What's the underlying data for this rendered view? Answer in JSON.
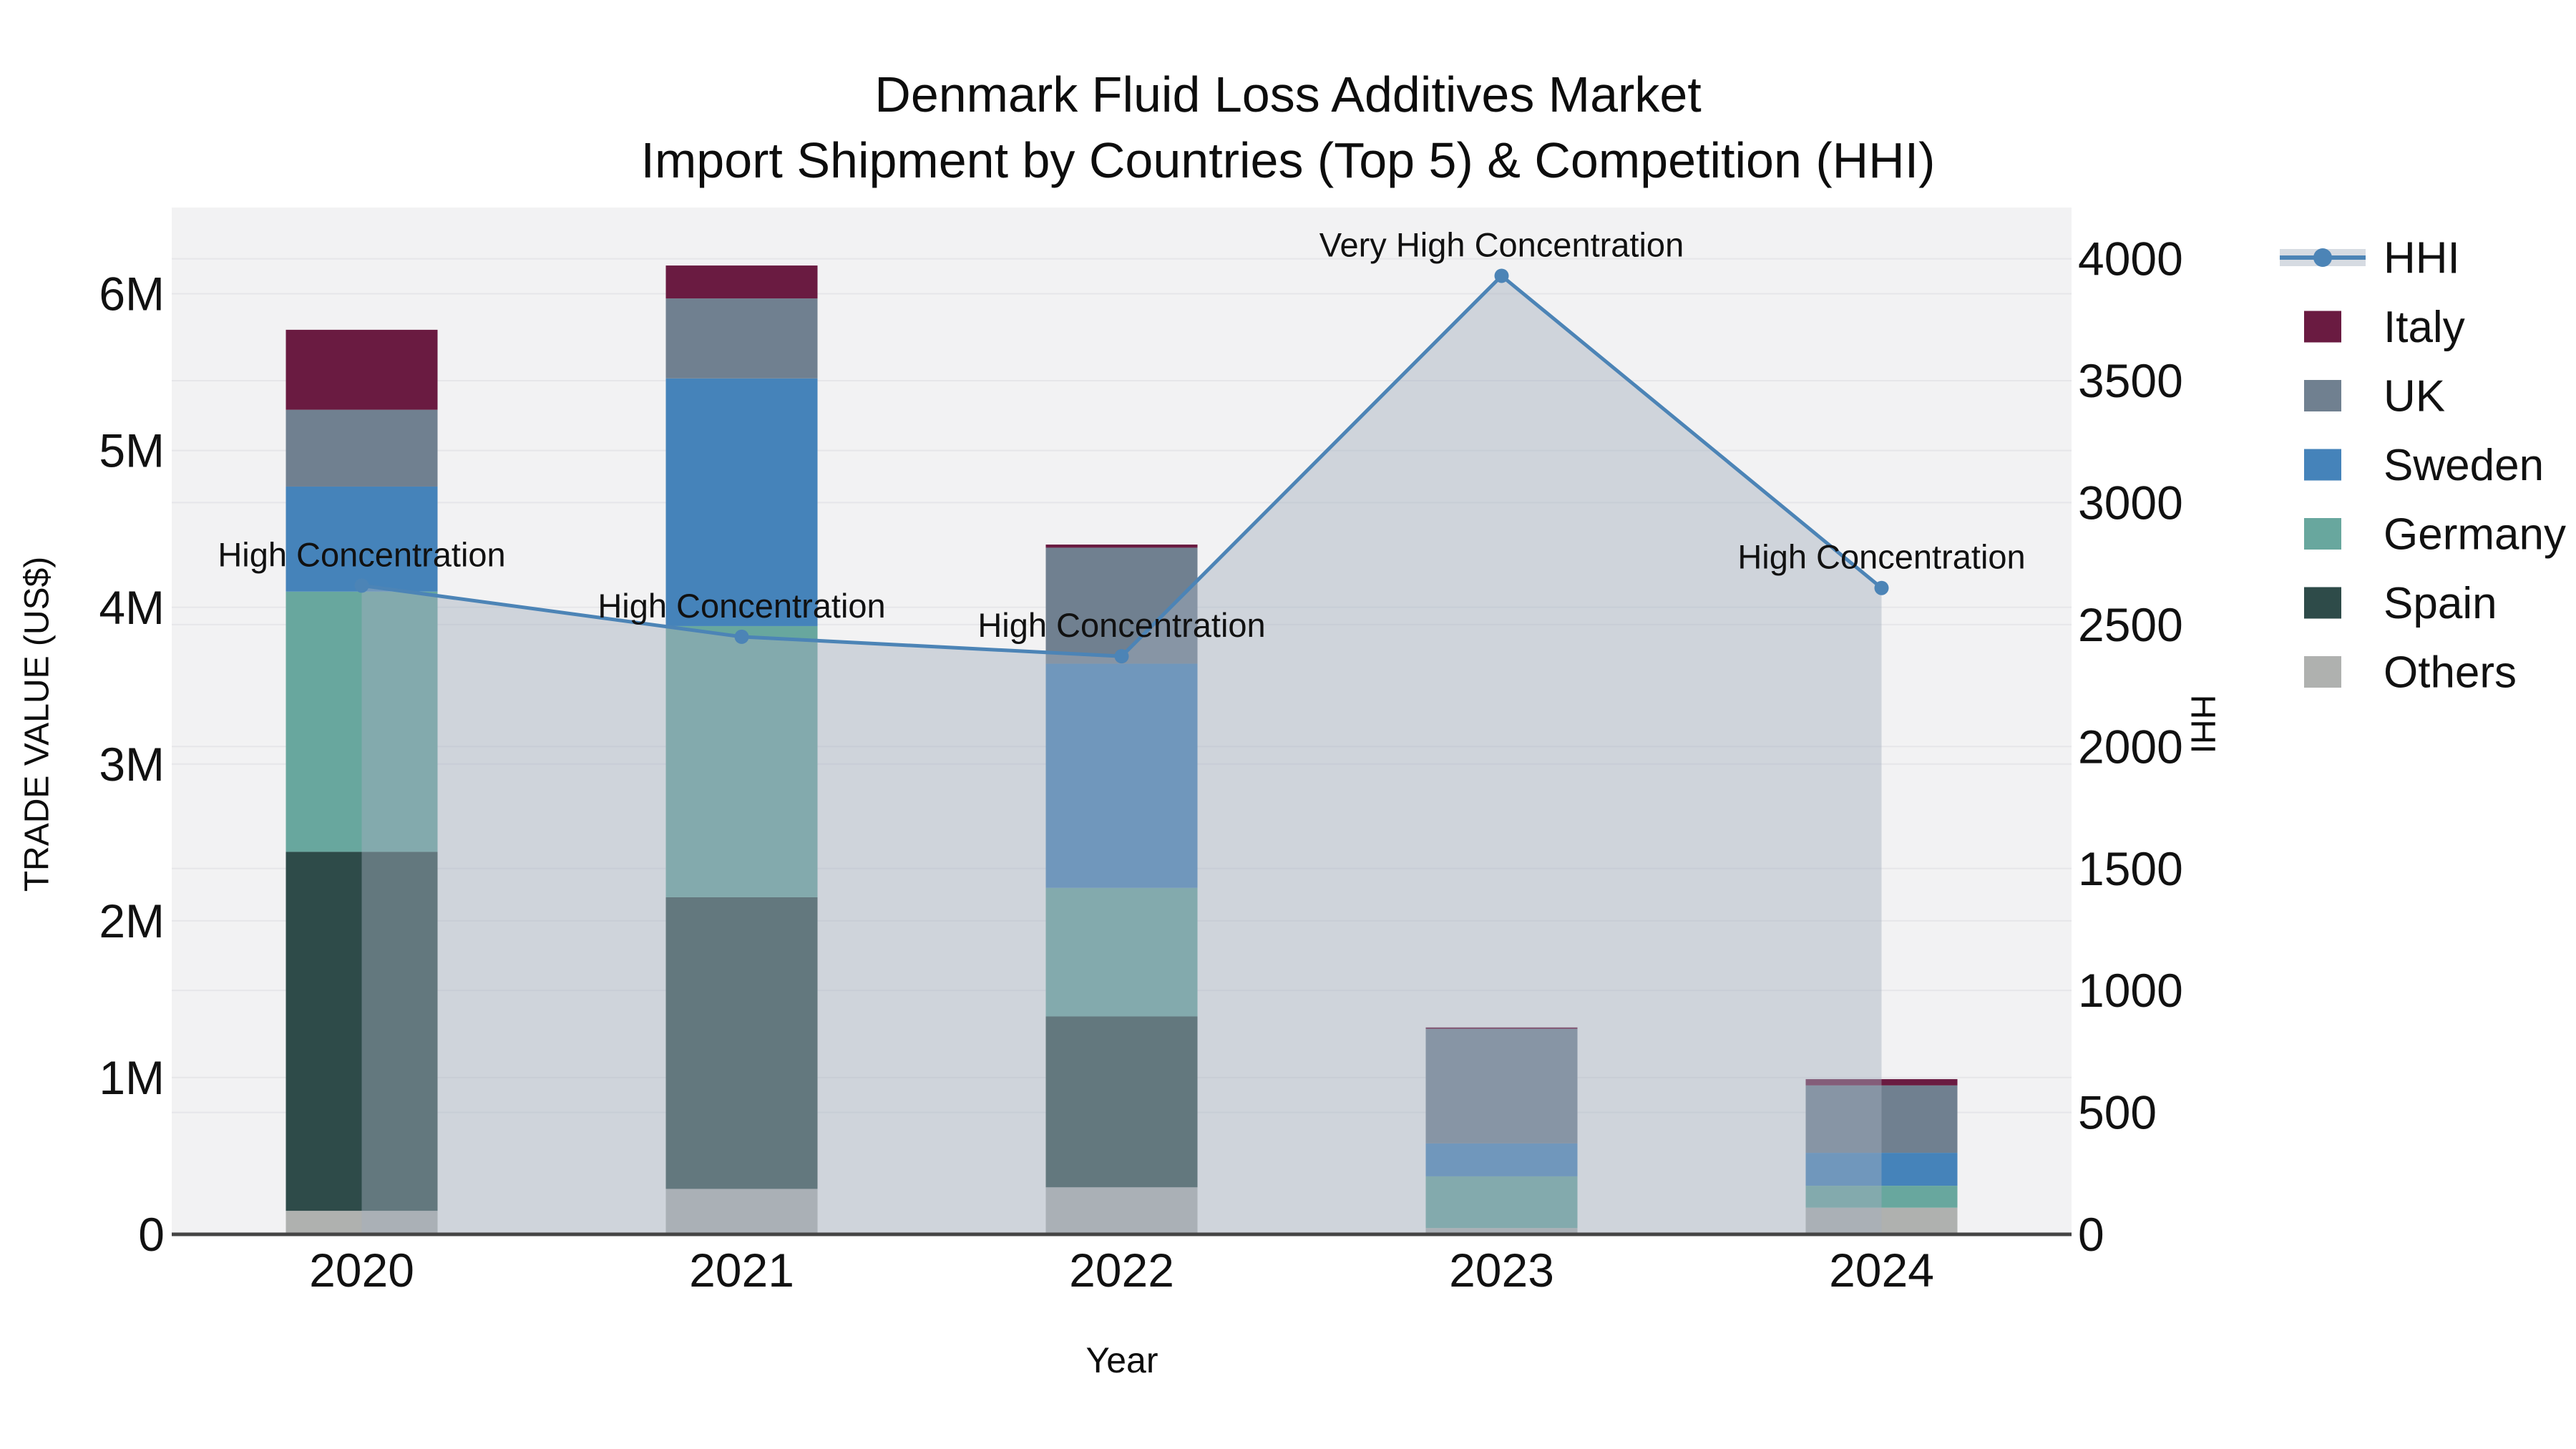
{
  "title": {
    "line1": "Denmark Fluid Loss Additives Market",
    "line2": "Import Shipment by Countries (Top 5) & Competition (HHI)"
  },
  "colors": {
    "page_bg": "#FFFFFF",
    "plot_bg": "#F2F2F3",
    "gridline": "#E6E6E9",
    "axis_line": "#444444",
    "text": "#111111"
  },
  "chart_data": {
    "type": "combo",
    "bar_mode": "stacked",
    "categories": [
      "2020",
      "2021",
      "2022",
      "2023",
      "2024"
    ],
    "xlabel": "Year",
    "ylabel_left": "TRADE VALUE (US$)",
    "ylabel_right": "HHI",
    "bar_value_unit": "USD millions",
    "y_left": {
      "range": [
        0,
        6.55
      ],
      "ticks": [
        {
          "v": 0,
          "label": "0"
        },
        {
          "v": 1,
          "label": "1M"
        },
        {
          "v": 2,
          "label": "2M"
        },
        {
          "v": 3,
          "label": "3M"
        },
        {
          "v": 4,
          "label": "4M"
        },
        {
          "v": 5,
          "label": "5M"
        },
        {
          "v": 6,
          "label": "6M"
        }
      ]
    },
    "y_right": {
      "range": [
        0,
        4210
      ],
      "ticks": [
        {
          "v": 0,
          "label": "0"
        },
        {
          "v": 500,
          "label": "500"
        },
        {
          "v": 1000,
          "label": "1000"
        },
        {
          "v": 1500,
          "label": "1500"
        },
        {
          "v": 2000,
          "label": "2000"
        },
        {
          "v": 2500,
          "label": "2500"
        },
        {
          "v": 3000,
          "label": "3000"
        },
        {
          "v": 3500,
          "label": "3500"
        },
        {
          "v": 4000,
          "label": "4000"
        }
      ]
    },
    "series": [
      {
        "name": "Others",
        "color": "#AFB1AF",
        "values": [
          0.15,
          0.29,
          0.3,
          0.04,
          0.17
        ]
      },
      {
        "name": "Spain",
        "color": "#2E4B49",
        "values": [
          2.29,
          1.86,
          1.09,
          0.0,
          0.0
        ]
      },
      {
        "name": "Germany",
        "color": "#68A79E",
        "values": [
          1.66,
          1.73,
          0.82,
          0.33,
          0.14
        ]
      },
      {
        "name": "Sweden",
        "color": "#4583BA",
        "values": [
          0.67,
          1.58,
          1.43,
          0.21,
          0.21
        ]
      },
      {
        "name": "UK",
        "color": "#708090",
        "values": [
          0.49,
          0.51,
          0.74,
          0.73,
          0.43
        ]
      },
      {
        "name": "Italy",
        "color": "#6A1B41",
        "values": [
          0.51,
          0.21,
          0.02,
          0.01,
          0.04
        ]
      }
    ],
    "line": {
      "name": "HHI",
      "color": "#4C84B6",
      "area_color": "rgba(163,175,191,0.45)",
      "values": [
        2660,
        2450,
        2370,
        3930,
        2650
      ]
    },
    "annotations": [
      {
        "category": "2020",
        "text": "High Concentration"
      },
      {
        "category": "2021",
        "text": "High Concentration"
      },
      {
        "category": "2022",
        "text": "High Concentration"
      },
      {
        "category": "2023",
        "text": "Very High Concentration"
      },
      {
        "category": "2024",
        "text": "High Concentration"
      }
    ],
    "legend": [
      {
        "label": "HHI",
        "kind": "line",
        "color": "#4C84B6"
      },
      {
        "label": "Italy",
        "kind": "swatch",
        "color": "#6A1B41"
      },
      {
        "label": "UK",
        "kind": "swatch",
        "color": "#708090"
      },
      {
        "label": "Sweden",
        "kind": "swatch",
        "color": "#4583BA"
      },
      {
        "label": "Germany",
        "kind": "swatch",
        "color": "#68A79E"
      },
      {
        "label": "Spain",
        "kind": "swatch",
        "color": "#2E4B49"
      },
      {
        "label": "Others",
        "kind": "swatch",
        "color": "#AFB1AF"
      }
    ]
  }
}
